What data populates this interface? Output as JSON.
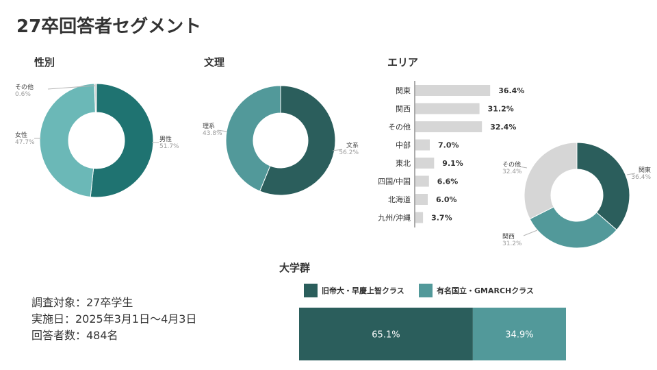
{
  "page_title": "27卒回答者セグメント",
  "colors": {
    "dark_teal": "#1f7371",
    "mid_teal": "#6bb8b7",
    "grey": "#d6d6d6",
    "dark_slate": "#2b5e5c",
    "sea": "#52999a"
  },
  "chart_data": [
    {
      "type": "pie",
      "title": "性別",
      "slices": [
        {
          "label": "男性",
          "value": 51.7,
          "value_label": "51.7%"
        },
        {
          "label": "女性",
          "value": 47.7,
          "value_label": "47.7%"
        },
        {
          "label": "その他",
          "value": 0.6,
          "value_label": "0.6%"
        }
      ]
    },
    {
      "type": "pie",
      "title": "文理",
      "slices": [
        {
          "label": "文系",
          "value": 56.2,
          "value_label": "56.2%"
        },
        {
          "label": "理系",
          "value": 43.8,
          "value_label": "43.8%"
        }
      ]
    },
    {
      "type": "bar",
      "title": "エリア",
      "orientation": "horizontal",
      "categories": [
        "関東",
        "関西",
        "その他",
        "中部",
        "東北",
        "四国/中国",
        "北海道",
        "九州/沖縄"
      ],
      "values": [
        36.4,
        31.2,
        32.4,
        7.0,
        9.1,
        6.6,
        6.0,
        3.7
      ],
      "value_labels": [
        "36.4%",
        "31.2%",
        "32.4%",
        "7.0%",
        "9.1%",
        "6.6%",
        "6.0%",
        "3.7%"
      ]
    },
    {
      "type": "pie",
      "title": "",
      "slices": [
        {
          "label": "関東",
          "value": 36.4,
          "value_label": "36.4%"
        },
        {
          "label": "関西",
          "value": 31.2,
          "value_label": "31.2%"
        },
        {
          "label": "その他",
          "value": 32.4,
          "value_label": "32.4%"
        }
      ]
    },
    {
      "type": "bar",
      "title": "大学群",
      "stacked": true,
      "orientation": "horizontal",
      "series": [
        {
          "name": "旧帝大・早慶上智クラス",
          "value": 65.1,
          "value_label": "65.1%"
        },
        {
          "name": "有名国立・GMARCHクラス",
          "value": 34.9,
          "value_label": "34.9%"
        }
      ]
    }
  ],
  "survey_info": {
    "target": "調査対象：27卒学生",
    "date": "実施日：2025年3月1日〜4月3日",
    "respondents": "回答者数：484名"
  }
}
